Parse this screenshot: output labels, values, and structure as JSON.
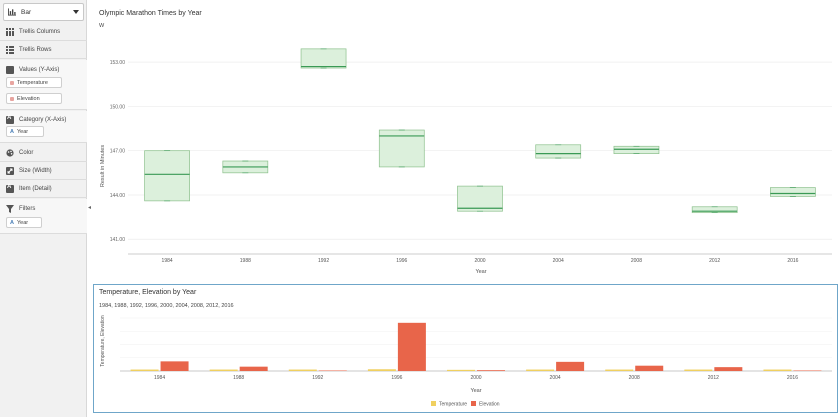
{
  "panel": {
    "chart_type": "Bar",
    "trellis_columns": "Trellis Columns",
    "trellis_rows": "Trellis Rows",
    "values_label": "Values (Y-Axis)",
    "values_items": [
      {
        "label": "Temperature",
        "color": "#e8a5a0"
      },
      {
        "label": "Elevation",
        "color": "#e8a5a0"
      }
    ],
    "category_label": "Category (X-Axis)",
    "category_item": "Year",
    "color_label": "Color",
    "size_label": "Size (Width)",
    "item_label": "Item (Detail)",
    "filters_label": "Filters",
    "filter_item": "Year"
  },
  "chart1": {
    "title": "Olympic Marathon Times by Year",
    "subtitle": "W",
    "ylabel": "Result in Minutes",
    "xlabel": "Year"
  },
  "chart2": {
    "title": "Temperature, Elevation by Year",
    "subtitle": "1984, 1988, 1992, 1996, 2000, 2004, 2008, 2012, 2016",
    "ylabel": "Temperature, Elevation",
    "xlabel": "Year",
    "legend": [
      "Temperature",
      "Elevation"
    ]
  },
  "colors": {
    "box_fill": "#dcf0dc",
    "box_stroke": "#8cc08c",
    "median": "#3a9a55",
    "temperature": "#f0d060",
    "elevation": "#e8654a",
    "frame": "#6fa6c9"
  },
  "chart_data": [
    {
      "type": "box",
      "title": "Olympic Marathon Times by Year",
      "subtitle": "W",
      "xlabel": "Year",
      "ylabel": "Result in Minutes",
      "categories": [
        "1984",
        "1988",
        "1992",
        "1996",
        "2000",
        "2004",
        "2008",
        "2012",
        "2016"
      ],
      "yticks": [
        "141.00",
        "144.00",
        "147.00",
        "150.00",
        "153.00"
      ],
      "ylim": [
        140,
        154.5
      ],
      "boxes": [
        {
          "min": 143.6,
          "q1": 143.6,
          "median": 145.4,
          "q3": 147.0,
          "max": 147.0
        },
        {
          "min": 145.5,
          "q1": 145.5,
          "median": 145.9,
          "q3": 146.3,
          "max": 146.3
        },
        {
          "min": 152.6,
          "q1": 152.6,
          "median": 152.7,
          "q3": 153.9,
          "max": 153.9
        },
        {
          "min": 145.9,
          "q1": 145.9,
          "median": 148.0,
          "q3": 148.4,
          "max": 148.4
        },
        {
          "min": 142.9,
          "q1": 142.9,
          "median": 143.1,
          "q3": 144.6,
          "max": 144.6
        },
        {
          "min": 146.5,
          "q1": 146.5,
          "median": 146.8,
          "q3": 147.4,
          "max": 147.4
        },
        {
          "min": 146.8,
          "q1": 146.8,
          "median": 147.1,
          "q3": 147.3,
          "max": 147.3
        },
        {
          "min": 142.8,
          "q1": 142.8,
          "median": 142.9,
          "q3": 143.2,
          "max": 143.2
        },
        {
          "min": 143.9,
          "q1": 143.9,
          "median": 144.1,
          "q3": 144.5,
          "max": 144.5
        }
      ]
    },
    {
      "type": "bar",
      "title": "Temperature, Elevation by Year",
      "subtitle": "1984, 1988, 1992, 1996, 2000, 2004, 2008, 2012, 2016",
      "xlabel": "Year",
      "ylabel": "Temperature, Elevation",
      "categories": [
        "1984",
        "1988",
        "1992",
        "1996",
        "2000",
        "2004",
        "2008",
        "2012",
        "2016"
      ],
      "ylim": [
        0,
        55
      ],
      "series": [
        {
          "name": "Temperature",
          "values": [
            1.5,
            1.5,
            1.5,
            1.8,
            1.2,
            1.5,
            1.5,
            1.5,
            1.5
          ]
        },
        {
          "name": "Elevation",
          "values": [
            10,
            4.5,
            0,
            50,
            0.5,
            9.5,
            5.5,
            4,
            0
          ]
        }
      ]
    }
  ]
}
